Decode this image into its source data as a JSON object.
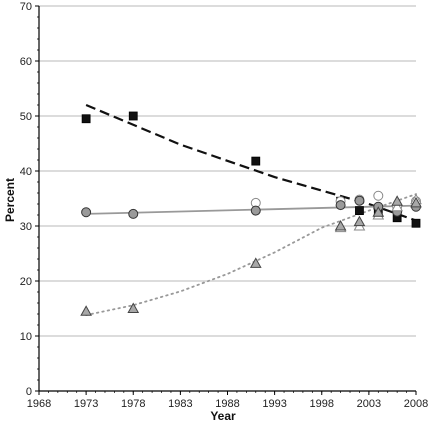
{
  "chart_data": {
    "type": "scatter",
    "title": "",
    "xlabel": "Year",
    "ylabel": "Percent",
    "xlim": [
      1968,
      2008
    ],
    "ylim": [
      0,
      70
    ],
    "x_ticks": [
      1968,
      1973,
      1978,
      1983,
      1988,
      1993,
      1998,
      2003,
      2008
    ],
    "y_ticks": [
      0,
      10,
      20,
      30,
      40,
      50,
      60,
      70
    ],
    "grid": "horizontal",
    "legend": "none",
    "series": [
      {
        "marker": "square-filled",
        "color": "#111111",
        "points": [
          {
            "x": 1973,
            "y": 49.5
          },
          {
            "x": 1978,
            "y": 50.0
          },
          {
            "x": 1991,
            "y": 41.8
          },
          {
            "x": 2000,
            "y": 34.5
          },
          {
            "x": 2002,
            "y": 32.8
          },
          {
            "x": 2004,
            "y": 32.4
          },
          {
            "x": 2006,
            "y": 31.5
          },
          {
            "x": 2008,
            "y": 30.5
          }
        ],
        "trend": {
          "style": "dashed",
          "color": "#111111",
          "x": [
            1973,
            1983,
            1993,
            2003,
            2008
          ],
          "y": [
            52.0,
            44.8,
            38.9,
            34.0,
            31.0
          ]
        }
      },
      {
        "marker": "circle-open",
        "color": "#888888",
        "points": [
          {
            "x": 1991,
            "y": 34.2
          },
          {
            "x": 2000,
            "y": 34.5
          },
          {
            "x": 2002,
            "y": 34.8
          },
          {
            "x": 2004,
            "y": 35.5
          },
          {
            "x": 2006,
            "y": 33.5
          },
          {
            "x": 2008,
            "y": 34.5
          }
        ]
      },
      {
        "marker": "circle-filled",
        "color": "#9a9a9a",
        "points": [
          {
            "x": 1973,
            "y": 32.5
          },
          {
            "x": 1978,
            "y": 32.2
          },
          {
            "x": 1991,
            "y": 32.8
          },
          {
            "x": 2000,
            "y": 33.8
          },
          {
            "x": 2002,
            "y": 34.6
          },
          {
            "x": 2004,
            "y": 33.5
          },
          {
            "x": 2006,
            "y": 32.6
          },
          {
            "x": 2008,
            "y": 33.5
          }
        ],
        "trend": {
          "style": "solid",
          "color": "#999999",
          "x": [
            1973,
            2008
          ],
          "y": [
            32.2,
            33.7
          ]
        }
      },
      {
        "marker": "triangle-open",
        "color": "#888888",
        "points": [
          {
            "x": 2000,
            "y": 29.7
          },
          {
            "x": 2002,
            "y": 30.0
          },
          {
            "x": 2004,
            "y": 32.0
          },
          {
            "x": 2006,
            "y": 33.5
          },
          {
            "x": 2008,
            "y": 34.8
          }
        ]
      },
      {
        "marker": "triangle-filled",
        "color": "#a8a8a8",
        "points": [
          {
            "x": 1973,
            "y": 14.5
          },
          {
            "x": 1978,
            "y": 15.0
          },
          {
            "x": 1991,
            "y": 23.2
          },
          {
            "x": 2000,
            "y": 30.0
          },
          {
            "x": 2002,
            "y": 30.8
          },
          {
            "x": 2004,
            "y": 32.5
          },
          {
            "x": 2006,
            "y": 34.5
          },
          {
            "x": 2008,
            "y": 34.2
          }
        ],
        "trend": {
          "style": "dotted",
          "color": "#999999",
          "x": [
            1973,
            1978,
            1983,
            1988,
            1993,
            1998,
            2003,
            2008
          ],
          "y": [
            13.8,
            15.6,
            18.1,
            21.3,
            25.2,
            29.7,
            32.8,
            35.8
          ]
        }
      }
    ]
  }
}
